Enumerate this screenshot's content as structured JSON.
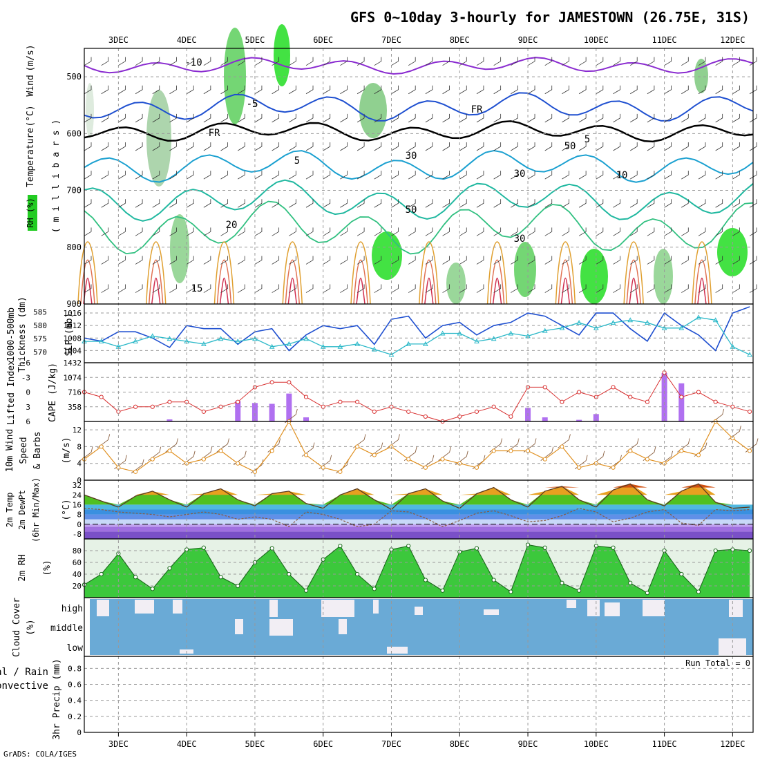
{
  "title": "GFS 0~10day 3-hourly for JAMESTOWN (26.75E, 31S)",
  "footer": "GrADS: COLA/IGES",
  "run_total_label": "Run Total = 0",
  "top_axis_days": [
    "3DEC",
    "4DEC",
    "5DEC",
    "6DEC",
    "7DEC",
    "8DEC",
    "9DEC",
    "10DEC",
    "11DEC",
    "12DEC"
  ],
  "bottom_axis_days": [
    "3DEC",
    "4DEC",
    "5DEC",
    "6DEC",
    "7DEC",
    "8DEC",
    "9DEC",
    "10DEC",
    "11DEC",
    "12DEC"
  ],
  "colors": {
    "rh_green": "#22cc22",
    "wind_blue": "#1e4fd0",
    "thickness_cyan": "#2ab8c8",
    "lifted_red": "#d83030",
    "cape_purple": "#b070f0",
    "wind10_orange": "#e09020",
    "barb_brown": "#8a6040",
    "rh2m_green": "#1aa01a",
    "cloud_label": "#3aa0d0",
    "cloud_bg": "#6aaad6",
    "freeze_black": "#000000"
  },
  "panels": {
    "profile": {
      "ylabel_parts": [
        "RH (%)",
        "Temperature",
        "(°C)",
        "Wind",
        "(m/s)"
      ],
      "ylabel2": "( m i l l i b a r s )",
      "yticks": [
        "500",
        "600",
        "700",
        "800",
        "900"
      ],
      "contour_labels": [
        "-10",
        "-5",
        "FR",
        "FR",
        "-5",
        "5",
        "5",
        "10",
        "20",
        "15",
        "50",
        "50",
        "30",
        "30",
        "30"
      ]
    },
    "slp": {
      "label_left": "1000-500mb",
      "label_left2": "Thickness (dm)",
      "label_right": "SLP (mb)",
      "left_ticks": [
        "585",
        "580",
        "575",
        "570"
      ],
      "right_ticks": [
        "1016",
        "1012",
        "1008",
        "1004"
      ]
    },
    "li": {
      "label_left": "Lifted Index",
      "label_right": "CAPE (J/kg)",
      "left_ticks": [
        "-6",
        "-3",
        "0",
        "3",
        "6"
      ],
      "right_ticks": [
        "1432",
        "1074",
        "716",
        "358"
      ]
    },
    "wind10": {
      "label1": "10m Wind",
      "label2": "Speed",
      "label3": "& Barbs",
      "unit": "(m/s)",
      "ticks": [
        "12",
        "8",
        "4",
        "0"
      ]
    },
    "temp2m": {
      "label1": "2m Temp",
      "label2": "2m DewPt",
      "label3": "(6hr Min/Max)",
      "unit": "(°C)",
      "ticks": [
        "32",
        "24",
        "16",
        "8",
        "0",
        "-8"
      ]
    },
    "rh2m": {
      "label1": "2m RH",
      "unit": "(%)",
      "ticks": [
        "80",
        "60",
        "40",
        "20"
      ]
    },
    "cloud": {
      "label1": "Cloud Cover",
      "unit": "(%)",
      "levels": [
        "high",
        "middle",
        "low"
      ]
    },
    "precip": {
      "label1": "Total / Rain",
      "label2": "Convective",
      "label3": "3hr Precip (mm)",
      "ticks": [
        "0.8",
        "0.6",
        "0.4",
        "0.2",
        "0"
      ]
    }
  },
  "chart_data": [
    {
      "type": "line",
      "title": "SLP (mb)",
      "x": [
        "2.50",
        "2.75",
        "3.00",
        "3.25",
        "3.50",
        "3.75",
        "4.00",
        "4.25",
        "4.50",
        "4.75",
        "5.00",
        "5.25",
        "5.50",
        "5.75",
        "6.00",
        "6.25",
        "6.50",
        "6.75",
        "7.00",
        "7.25",
        "7.50",
        "7.75",
        "8.00",
        "8.25",
        "8.50",
        "8.75",
        "9.00",
        "9.25",
        "9.50",
        "9.75",
        "10.00",
        "10.25",
        "10.50",
        "10.75",
        "11.00",
        "11.25",
        "11.50",
        "11.75",
        "12.00",
        "12.25"
      ],
      "series": [
        {
          "name": "SLP (mb)",
          "values": [
            1008,
            1007,
            1010,
            1010,
            1008,
            1005,
            1012,
            1011,
            1011,
            1006,
            1010,
            1011,
            1004,
            1009,
            1012,
            1011,
            1012,
            1006,
            1014,
            1015,
            1008,
            1012,
            1013,
            1009,
            1012,
            1013,
            1016,
            1015,
            1012,
            1009,
            1016,
            1016,
            1011,
            1007,
            1016,
            1012,
            1009,
            1004,
            1016,
            1018
          ]
        },
        {
          "name": "1000-500mb Thickness (dm)",
          "values": [
            574,
            574,
            572,
            574,
            576,
            575,
            574,
            573,
            575,
            574,
            575,
            572,
            573,
            575,
            572,
            572,
            573,
            571,
            569,
            573,
            573,
            577,
            577,
            574,
            575,
            577,
            576,
            578,
            579,
            581,
            579,
            581,
            582,
            581,
            579,
            579,
            583,
            582,
            572,
            569
          ]
        }
      ],
      "ylim_left": [
        567,
        587
      ],
      "ylim_right": [
        1001,
        1018
      ]
    },
    {
      "type": "bar",
      "title": "Lifted Index / CAPE (J/kg)",
      "x": [
        "2.50",
        "2.75",
        "3.00",
        "3.25",
        "3.50",
        "3.75",
        "4.00",
        "4.25",
        "4.50",
        "4.75",
        "5.00",
        "5.25",
        "5.50",
        "5.75",
        "6.00",
        "6.25",
        "6.50",
        "6.75",
        "7.00",
        "7.25",
        "7.50",
        "7.75",
        "8.00",
        "8.25",
        "8.50",
        "8.75",
        "9.00",
        "9.25",
        "9.50",
        "9.75",
        "10.00",
        "10.25",
        "10.50",
        "10.75",
        "11.00",
        "11.25",
        "11.50",
        "11.75",
        "12.00",
        "12.25"
      ],
      "series": [
        {
          "name": "Lifted Index",
          "values": [
            0,
            1,
            4,
            3,
            3,
            2,
            2,
            4,
            3,
            2,
            -1,
            -2,
            -2,
            1,
            3,
            2,
            2,
            4,
            3,
            4,
            5,
            6,
            5,
            4,
            3,
            5,
            -1,
            -1,
            2,
            0,
            1,
            -1,
            1,
            2,
            -4,
            1,
            0,
            2,
            3,
            4
          ]
        },
        {
          "name": "CAPE (J/kg)",
          "values": [
            0,
            0,
            0,
            0,
            0,
            50,
            0,
            0,
            10,
            500,
            450,
            430,
            680,
            100,
            0,
            0,
            0,
            0,
            0,
            0,
            0,
            0,
            0,
            0,
            0,
            0,
            330,
            100,
            0,
            40,
            180,
            0,
            0,
            0,
            1180,
            930,
            0,
            0,
            0,
            0
          ]
        }
      ],
      "ylim_left": [
        -6,
        6
      ],
      "ylim_right": [
        0,
        1432
      ]
    },
    {
      "type": "line",
      "title": "10m Wind Speed (m/s)",
      "x": [
        "2.50",
        "2.75",
        "3.00",
        "3.25",
        "3.50",
        "3.75",
        "4.00",
        "4.25",
        "4.50",
        "4.75",
        "5.00",
        "5.25",
        "5.50",
        "5.75",
        "6.00",
        "6.25",
        "6.50",
        "6.75",
        "7.00",
        "7.25",
        "7.50",
        "7.75",
        "8.00",
        "8.25",
        "8.50",
        "8.75",
        "9.00",
        "9.25",
        "9.50",
        "9.75",
        "10.00",
        "10.25",
        "10.50",
        "10.75",
        "11.00",
        "11.25",
        "11.50",
        "11.75",
        "12.00",
        "12.25"
      ],
      "series": [
        {
          "name": "10m Wind Speed",
          "values": [
            5,
            8,
            3,
            2,
            5,
            7,
            4,
            5,
            7,
            4,
            2,
            7,
            14,
            6,
            3,
            2,
            8,
            6,
            8,
            5,
            3,
            5,
            4,
            3,
            7,
            7,
            7,
            5,
            8,
            3,
            4,
            3,
            7,
            5,
            4,
            7,
            6,
            14,
            10,
            7
          ]
        }
      ],
      "ylim": [
        0,
        14
      ]
    },
    {
      "type": "area",
      "title": "2m Temp / DewPt (°C)",
      "x": [
        "2.50",
        "2.75",
        "3.00",
        "3.25",
        "3.50",
        "3.75",
        "4.00",
        "4.25",
        "4.50",
        "4.75",
        "5.00",
        "5.25",
        "5.50",
        "5.75",
        "6.00",
        "6.25",
        "6.50",
        "6.75",
        "7.00",
        "7.25",
        "7.50",
        "7.75",
        "8.00",
        "8.25",
        "8.50",
        "8.75",
        "9.00",
        "9.25",
        "9.50",
        "9.75",
        "10.00",
        "10.25",
        "10.50",
        "10.75",
        "11.00",
        "11.25",
        "11.50",
        "11.75",
        "12.00",
        "12.25"
      ],
      "series": [
        {
          "name": "2m Temp",
          "values": [
            24,
            19,
            14,
            23,
            27,
            20,
            14,
            25,
            29,
            20,
            15,
            25,
            27,
            17,
            13,
            24,
            29,
            20,
            12,
            25,
            29,
            19,
            13,
            25,
            30,
            20,
            14,
            27,
            31,
            20,
            14,
            28,
            33,
            20,
            15,
            27,
            33,
            18,
            13,
            14
          ]
        },
        {
          "name": "2m DewPt",
          "values": [
            13,
            12,
            10,
            9,
            8,
            6,
            8,
            10,
            8,
            4,
            6,
            4,
            -2,
            10,
            8,
            4,
            -2,
            0,
            11,
            10,
            5,
            -2,
            3,
            9,
            11,
            7,
            2,
            3,
            7,
            13,
            10,
            2,
            5,
            10,
            12,
            1,
            -1,
            12,
            11,
            12
          ]
        }
      ],
      "ylim": [
        -12,
        36
      ]
    },
    {
      "type": "area",
      "title": "2m RH (%)",
      "x": [
        "2.50",
        "2.75",
        "3.00",
        "3.25",
        "3.50",
        "3.75",
        "4.00",
        "4.25",
        "4.50",
        "4.75",
        "5.00",
        "5.25",
        "5.50",
        "5.75",
        "6.00",
        "6.25",
        "6.50",
        "6.75",
        "7.00",
        "7.25",
        "7.50",
        "7.75",
        "8.00",
        "8.25",
        "8.50",
        "8.75",
        "9.00",
        "9.25",
        "9.50",
        "9.75",
        "10.00",
        "10.25",
        "10.50",
        "10.75",
        "11.00",
        "11.25",
        "11.50",
        "11.75",
        "12.00",
        "12.25"
      ],
      "series": [
        {
          "name": "2m RH",
          "values": [
            22,
            40,
            75,
            35,
            15,
            50,
            82,
            85,
            35,
            20,
            60,
            84,
            40,
            12,
            65,
            88,
            40,
            15,
            82,
            88,
            30,
            12,
            78,
            84,
            30,
            10,
            90,
            85,
            25,
            12,
            88,
            85,
            25,
            8,
            80,
            40,
            10,
            80,
            82,
            80
          ]
        }
      ],
      "ylim": [
        0,
        100
      ]
    }
  ]
}
